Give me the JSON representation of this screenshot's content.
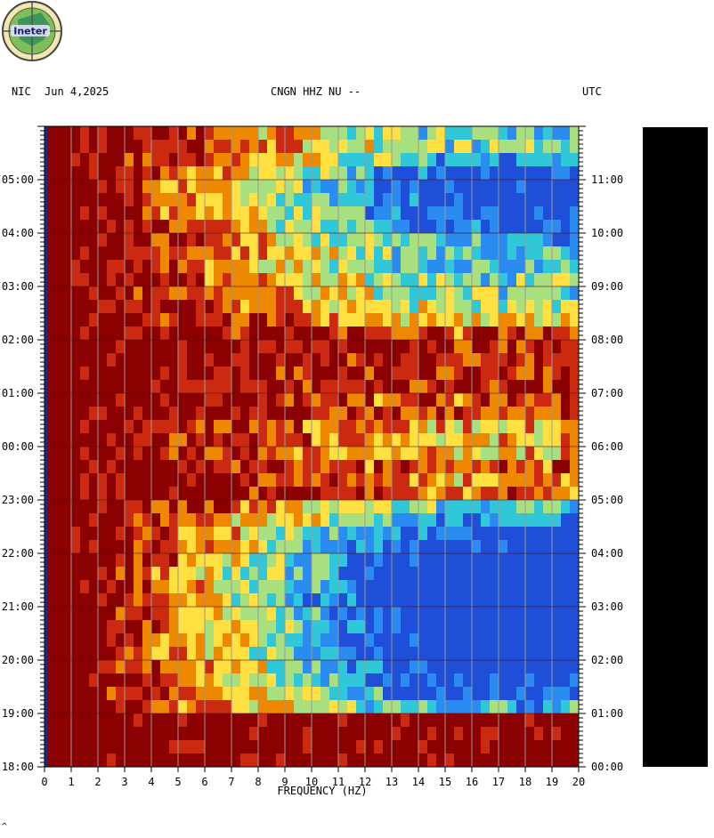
{
  "header": {
    "network": "NIC",
    "date": "Jun 4,2025",
    "station": "CNGN HHZ NU --",
    "tz_right": "UTC"
  },
  "logo": {
    "text": "Ineter"
  },
  "colors": {
    "background": "#ffffff",
    "high_power": "#8b0000",
    "grid": "#9a9a9a",
    "low_power": "#1f4fd8",
    "side_bar": "#000000"
  },
  "chart_data": {
    "type": "heatmap",
    "xlabel": "FREQUENCY (HZ)",
    "x_ticks": [
      "0",
      "1",
      "2",
      "3",
      "4",
      "5",
      "6",
      "7",
      "8",
      "9",
      "10",
      "11",
      "12",
      "13",
      "14",
      "15",
      "16",
      "17",
      "18",
      "19",
      "20"
    ],
    "xlim": [
      0,
      20
    ],
    "left_time_labels": [
      "05:00",
      "04:00",
      "03:00",
      "02:00",
      "01:00",
      "00:00",
      "23:00",
      "22:00",
      "21:00",
      "20:00",
      "19:00",
      "18:00"
    ],
    "right_time_labels": [
      "11:00",
      "10:00",
      "09:00",
      "08:00",
      "07:00",
      "06:00",
      "05:00",
      "04:00",
      "03:00",
      "02:00",
      "01:00",
      "00:00"
    ],
    "ylim_hours": [
      0,
      12
    ],
    "colormap": [
      "#8b0000",
      "#cc2a10",
      "#ee8800",
      "#ffe040",
      "#a8e080",
      "#30c8d8",
      "#2a8cf0",
      "#1f4fd8"
    ],
    "rows": [
      {
        "t": 0.0,
        "lvl": 0.0
      },
      {
        "t": 0.25,
        "lvl": 0.0
      },
      {
        "t": 0.5,
        "lvl": 0.0
      },
      {
        "t": 0.75,
        "lvl": 0.0
      },
      {
        "t": 1.0,
        "lvl": 0.55
      },
      {
        "t": 1.25,
        "lvl": 0.7
      },
      {
        "t": 1.5,
        "lvl": 0.75
      },
      {
        "t": 1.75,
        "lvl": 0.78
      },
      {
        "t": 2.0,
        "lvl": 0.8
      },
      {
        "t": 2.25,
        "lvl": 0.82
      },
      {
        "t": 2.5,
        "lvl": 0.83
      },
      {
        "t": 2.75,
        "lvl": 0.83
      },
      {
        "t": 3.0,
        "lvl": 0.84
      },
      {
        "t": 3.25,
        "lvl": 0.84
      },
      {
        "t": 3.5,
        "lvl": 0.84
      },
      {
        "t": 3.75,
        "lvl": 0.78
      },
      {
        "t": 4.0,
        "lvl": 0.75
      },
      {
        "t": 4.25,
        "lvl": 0.7
      },
      {
        "t": 4.5,
        "lvl": 0.6
      },
      {
        "t": 4.75,
        "lvl": 0.5
      },
      {
        "t": 5.0,
        "lvl": 0.2
      },
      {
        "t": 5.25,
        "lvl": 0.25
      },
      {
        "t": 5.5,
        "lvl": 0.2
      },
      {
        "t": 5.75,
        "lvl": 0.3
      },
      {
        "t": 6.0,
        "lvl": 0.3
      },
      {
        "t": 6.25,
        "lvl": 0.28
      },
      {
        "t": 6.5,
        "lvl": 0.15
      },
      {
        "t": 6.75,
        "lvl": 0.2
      },
      {
        "t": 7.0,
        "lvl": 0.15
      },
      {
        "t": 7.25,
        "lvl": 0.15
      },
      {
        "t": 7.5,
        "lvl": 0.1
      },
      {
        "t": 7.75,
        "lvl": 0.1
      },
      {
        "t": 8.0,
        "lvl": 0.15
      },
      {
        "t": 8.25,
        "lvl": 0.3
      },
      {
        "t": 8.5,
        "lvl": 0.4
      },
      {
        "t": 8.75,
        "lvl": 0.45
      },
      {
        "t": 9.0,
        "lvl": 0.45
      },
      {
        "t": 9.25,
        "lvl": 0.55
      },
      {
        "t": 9.5,
        "lvl": 0.5
      },
      {
        "t": 9.75,
        "lvl": 0.55
      },
      {
        "t": 10.0,
        "lvl": 0.65
      },
      {
        "t": 10.25,
        "lvl": 0.7
      },
      {
        "t": 10.5,
        "lvl": 0.72
      },
      {
        "t": 10.75,
        "lvl": 0.75
      },
      {
        "t": 11.0,
        "lvl": 0.7
      },
      {
        "t": 11.25,
        "lvl": 0.55
      },
      {
        "t": 11.5,
        "lvl": 0.45
      },
      {
        "t": 11.75,
        "lvl": 0.5
      }
    ]
  },
  "footer": {
    "mark": "^"
  }
}
